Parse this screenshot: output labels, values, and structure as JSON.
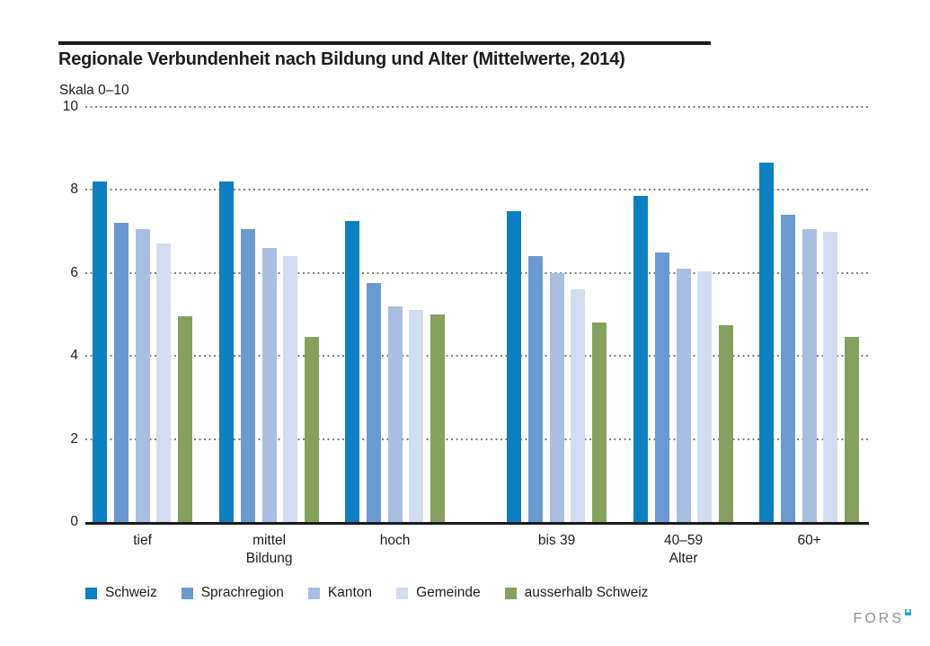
{
  "header": {
    "title": "Regionale Verbundenheit nach Bildung und Alter (Mittelwerte, 2014)",
    "subtitle": "Skala 0–10"
  },
  "chart_data": {
    "type": "bar",
    "title": "Regionale Verbundenheit nach Bildung und Alter (Mittelwerte, 2014)",
    "subtitle": "Skala 0–10",
    "ylim": [
      0,
      10
    ],
    "yticks": [
      0,
      2,
      4,
      6,
      8,
      10
    ],
    "grid": "horizontal dotted lines at 2,4,6,8,10",
    "legend_position": "bottom",
    "categories": [
      "tief",
      "mittel",
      "hoch",
      "bis 39",
      "40–59",
      "60+"
    ],
    "category_sections": [
      {
        "label": "Bildung",
        "under_category": "mittel"
      },
      {
        "label": "Alter",
        "under_category": "40–59"
      }
    ],
    "series": [
      {
        "name": "Schweiz",
        "color": "#0d80c1",
        "values": [
          8.2,
          8.2,
          7.25,
          7.5,
          7.85,
          8.65
        ]
      },
      {
        "name": "Sprachregion",
        "color": "#6b9ad1",
        "values": [
          7.2,
          7.05,
          5.75,
          6.4,
          6.5,
          7.4
        ]
      },
      {
        "name": "Kanton",
        "color": "#a9bfe1",
        "values": [
          7.05,
          6.6,
          5.2,
          6.0,
          6.1,
          7.05
        ]
      },
      {
        "name": "Gemeinde",
        "color": "#d4ddef",
        "values": [
          6.7,
          6.4,
          5.1,
          5.6,
          6.05,
          7.0
        ]
      },
      {
        "name": "ausserhalb Schweiz",
        "color": "#86a15f",
        "values": [
          4.95,
          4.45,
          5.0,
          4.8,
          4.75,
          4.45
        ]
      }
    ]
  },
  "footer": {
    "logo_text": "FORS",
    "logo_mark": "✱"
  },
  "colors": {
    "axis": "#1a1a1a",
    "gridline": "#7e7e7e",
    "text": "#1d1d1b",
    "logo_gray": "#8b9196",
    "logo_blue": "#2e9fd4"
  }
}
